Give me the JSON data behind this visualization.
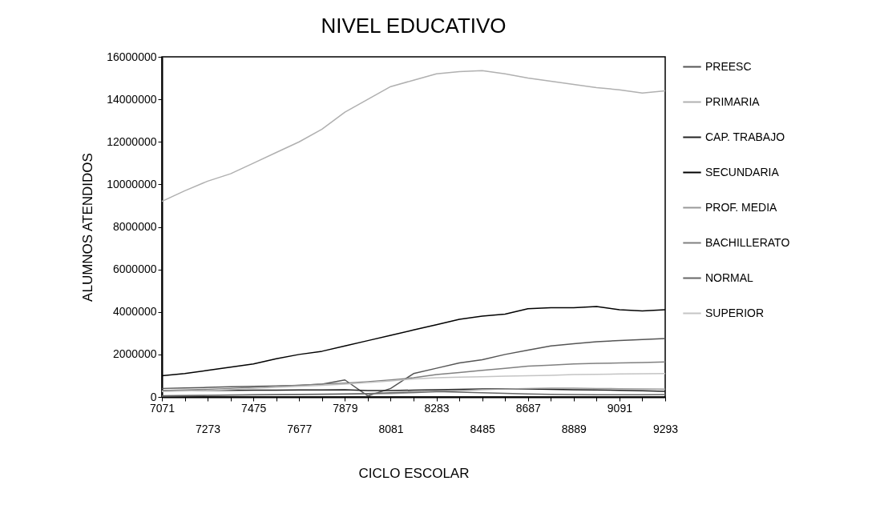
{
  "chart_data": {
    "type": "line",
    "title": "NIVEL EDUCATIVO",
    "xlabel": "CICLO ESCOLAR",
    "ylabel": "ALUMNOS ATENDIDOS",
    "categories": [
      "7071",
      null,
      "7273",
      null,
      "7475",
      null,
      "7677",
      null,
      "7879",
      null,
      "8081",
      null,
      "8283",
      null,
      "8485",
      null,
      "8687",
      null,
      "8889",
      null,
      "9091",
      null,
      "9293"
    ],
    "series": [
      {
        "name": "PREESC",
        "color": "#555555",
        "values": [
          400000,
          420000,
          450000,
          480000,
          500000,
          520000,
          550000,
          600000,
          800000,
          50000,
          400000,
          1100000,
          1350000,
          1600000,
          1750000,
          2000000,
          2200000,
          2400000,
          2500000,
          2600000,
          2650000,
          2700000,
          2750000
        ]
      },
      {
        "name": "PRIMARIA",
        "color": "#b0b0b0",
        "values": [
          9200000,
          9700000,
          10150000,
          10500000,
          11000000,
          11500000,
          12000000,
          12600000,
          13400000,
          14000000,
          14600000,
          14900000,
          15200000,
          15300000,
          15350000,
          15200000,
          15000000,
          14850000,
          14700000,
          14550000,
          14450000,
          14300000,
          14400000
        ]
      },
      {
        "name": "CAP. TRABAJO",
        "color": "#222222",
        "values": [
          300000,
          300000,
          310000,
          310000,
          320000,
          320000,
          330000,
          330000,
          340000,
          300000,
          300000,
          320000,
          340000,
          360000,
          380000,
          390000,
          380000,
          360000,
          340000,
          330000,
          310000,
          290000,
          260000
        ]
      },
      {
        "name": "SECUNDARIA",
        "color": "#000000",
        "values": [
          1000000,
          1100000,
          1250000,
          1400000,
          1550000,
          1800000,
          2000000,
          2150000,
          2400000,
          2650000,
          2900000,
          3150000,
          3400000,
          3650000,
          3800000,
          3900000,
          4150000,
          4200000,
          4200000,
          4250000,
          4100000,
          4050000,
          4100000
        ]
      },
      {
        "name": "PROF. MEDIA",
        "color": "#999999",
        "values": [
          50000,
          60000,
          70000,
          80000,
          90000,
          100000,
          110000,
          120000,
          130000,
          140000,
          160000,
          200000,
          250000,
          300000,
          350000,
          380000,
          400000,
          410000,
          410000,
          400000,
          390000,
          380000,
          370000
        ]
      },
      {
        "name": "BACHILLERATO",
        "color": "#808080",
        "values": [
          300000,
          330000,
          360000,
          400000,
          450000,
          500000,
          550000,
          600000,
          650000,
          720000,
          800000,
          900000,
          1050000,
          1150000,
          1250000,
          1350000,
          1450000,
          1500000,
          1550000,
          1580000,
          1600000,
          1620000,
          1650000
        ]
      },
      {
        "name": "NORMAL",
        "color": "#666666",
        "values": [
          60000,
          70000,
          80000,
          90000,
          100000,
          110000,
          120000,
          130000,
          140000,
          160000,
          200000,
          230000,
          250000,
          230000,
          200000,
          170000,
          140000,
          120000,
          110000,
          100000,
          100000,
          100000,
          110000
        ]
      },
      {
        "name": "SUPERIOR",
        "color": "#c4c4c4",
        "values": [
          250000,
          280000,
          310000,
          350000,
          400000,
          450000,
          500000,
          550000,
          600000,
          680000,
          750000,
          850000,
          900000,
          930000,
          950000,
          980000,
          1000000,
          1020000,
          1050000,
          1060000,
          1080000,
          1090000,
          1100000
        ]
      }
    ],
    "ylim": [
      0,
      16000000
    ],
    "yticks": [
      0,
      2000000,
      4000000,
      6000000,
      8000000,
      10000000,
      12000000,
      14000000,
      16000000
    ],
    "legend": "right",
    "marker": "none",
    "line_style": "solid"
  }
}
